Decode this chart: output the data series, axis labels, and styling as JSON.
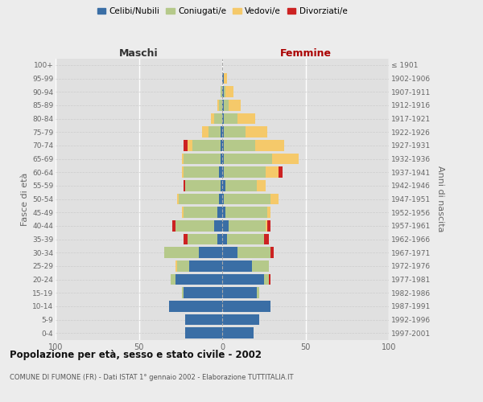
{
  "age_groups": [
    "0-4",
    "5-9",
    "10-14",
    "15-19",
    "20-24",
    "25-29",
    "30-34",
    "35-39",
    "40-44",
    "45-49",
    "50-54",
    "55-59",
    "60-64",
    "65-69",
    "70-74",
    "75-79",
    "80-84",
    "85-89",
    "90-94",
    "95-99",
    "100+"
  ],
  "birth_years": [
    "1997-2001",
    "1992-1996",
    "1987-1991",
    "1982-1986",
    "1977-1981",
    "1972-1976",
    "1967-1971",
    "1962-1966",
    "1957-1961",
    "1952-1956",
    "1947-1951",
    "1942-1946",
    "1937-1941",
    "1932-1936",
    "1927-1931",
    "1922-1926",
    "1917-1921",
    "1912-1916",
    "1907-1911",
    "1902-1906",
    "≤ 1901"
  ],
  "colors": {
    "celibi": "#3a6ea5",
    "coniugati": "#b5c98a",
    "vedovi": "#f5c96a",
    "divorziati": "#cc2222"
  },
  "maschi": {
    "celibi": [
      22,
      22,
      32,
      23,
      28,
      20,
      14,
      3,
      5,
      3,
      2,
      1,
      2,
      1,
      1,
      1,
      0,
      0,
      0,
      0,
      0
    ],
    "coniugati": [
      0,
      0,
      0,
      1,
      3,
      7,
      21,
      18,
      23,
      20,
      24,
      21,
      21,
      22,
      17,
      7,
      5,
      2,
      1,
      0,
      0
    ],
    "vedovi": [
      0,
      0,
      0,
      0,
      0,
      1,
      0,
      0,
      0,
      1,
      1,
      0,
      1,
      1,
      3,
      4,
      2,
      1,
      0,
      0,
      0
    ],
    "divorziati": [
      0,
      0,
      0,
      0,
      0,
      0,
      0,
      2,
      2,
      0,
      0,
      1,
      0,
      0,
      2,
      0,
      0,
      0,
      0,
      0,
      0
    ]
  },
  "femmine": {
    "celibi": [
      19,
      22,
      29,
      21,
      25,
      18,
      9,
      3,
      4,
      2,
      1,
      2,
      1,
      1,
      1,
      1,
      1,
      1,
      1,
      1,
      0
    ],
    "coniugati": [
      0,
      0,
      0,
      1,
      3,
      10,
      20,
      22,
      22,
      25,
      28,
      19,
      25,
      29,
      19,
      13,
      8,
      3,
      1,
      0,
      0
    ],
    "vedovi": [
      0,
      0,
      0,
      0,
      0,
      0,
      0,
      0,
      1,
      2,
      5,
      5,
      8,
      16,
      17,
      13,
      11,
      7,
      5,
      2,
      0
    ],
    "divorziati": [
      0,
      0,
      0,
      0,
      1,
      0,
      2,
      3,
      2,
      0,
      0,
      0,
      2,
      0,
      0,
      0,
      0,
      0,
      0,
      0,
      0
    ]
  },
  "title": "Popolazione per età, sesso e stato civile - 2002",
  "subtitle": "COMUNE DI FUMONE (FR) - Dati ISTAT 1° gennaio 2002 - Elaborazione TUTTITALIA.IT",
  "xlabel_left": "Maschi",
  "xlabel_right": "Femmine",
  "ylabel_left": "Fasce di età",
  "ylabel_right": "Anni di nascita",
  "xlim": 100,
  "bg_color": "#ececec",
  "plot_bg": "#e0e0e0",
  "legend_labels": [
    "Celibi/Nubili",
    "Coniugati/e",
    "Vedovi/e",
    "Divorziati/e"
  ]
}
